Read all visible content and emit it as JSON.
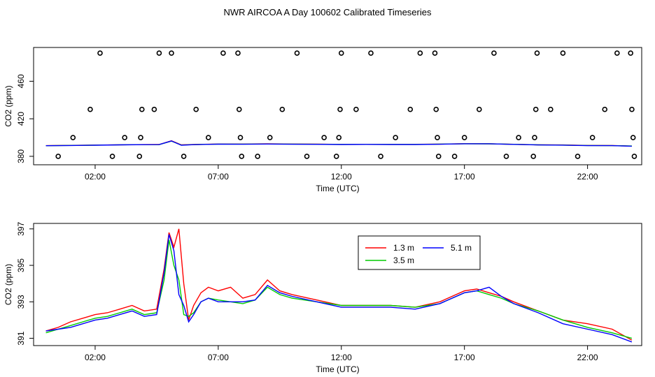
{
  "title": "NWR AIRCOA A  Day 100602  Calibrated Timeseries",
  "chart_data": [
    {
      "type": "line",
      "panel": "top",
      "xlabel": "Time (UTC)",
      "ylabel": "CO2 (ppm)",
      "xlim": [
        -0.5,
        24.2
      ],
      "ylim": [
        371,
        496
      ],
      "xticks": [
        2,
        7,
        12,
        17,
        22
      ],
      "xtick_labels": [
        "02:00",
        "07:00",
        "12:00",
        "17:00",
        "22:00"
      ],
      "yticks": [
        380,
        420,
        460
      ],
      "ytick_labels": [
        "380",
        "420",
        "460"
      ],
      "grid": false,
      "series": [
        {
          "name": "1.3 m",
          "color": "#ff0000",
          "x": [
            0,
            1,
            2,
            3,
            4,
            4.6,
            5.1,
            5.5,
            6,
            7,
            8,
            9,
            10,
            11,
            12,
            13,
            14,
            15,
            16,
            17,
            18,
            19,
            20,
            21,
            22,
            23,
            23.8
          ],
          "y": [
            391.4,
            391.7,
            392.0,
            392.3,
            392.5,
            392.6,
            396.6,
            392.2,
            392.6,
            393.1,
            393.1,
            393.3,
            393.1,
            393.0,
            392.7,
            392.7,
            392.7,
            392.8,
            393.0,
            393.5,
            393.4,
            392.8,
            392.2,
            392.1,
            391.6,
            391.5,
            390.9
          ]
        },
        {
          "name": "3.5 m",
          "color": "#00cc00",
          "x": [
            0,
            1,
            2,
            3,
            4,
            4.6,
            5.1,
            5.5,
            6,
            7,
            8,
            9,
            10,
            11,
            12,
            13,
            14,
            15,
            16,
            17,
            18,
            19,
            20,
            21,
            22,
            23,
            23.8
          ],
          "y": [
            391.3,
            391.6,
            391.9,
            392.3,
            392.4,
            392.4,
            396.2,
            392.0,
            392.5,
            393.0,
            393.0,
            393.1,
            393.0,
            392.9,
            392.7,
            392.7,
            392.7,
            392.7,
            393.0,
            393.4,
            393.3,
            392.8,
            392.2,
            392.0,
            391.5,
            391.4,
            391.0
          ]
        },
        {
          "name": "5.1 m",
          "color": "#0000ff",
          "x": [
            0,
            1,
            2,
            3,
            4,
            4.6,
            5.1,
            5.5,
            6,
            7,
            8,
            9,
            10,
            11,
            12,
            13,
            14,
            15,
            16,
            17,
            18,
            19,
            20,
            21,
            22,
            23,
            23.8
          ],
          "y": [
            391.3,
            391.5,
            391.8,
            392.2,
            392.4,
            392.5,
            396.4,
            391.8,
            392.4,
            393.0,
            392.9,
            393.1,
            392.9,
            392.8,
            392.6,
            392.7,
            392.6,
            392.6,
            392.9,
            393.4,
            393.4,
            392.7,
            392.1,
            391.9,
            391.4,
            391.4,
            390.8
          ]
        }
      ],
      "points": {
        "name": "calibration",
        "marker": "open-circle",
        "x": [
          0.5,
          1.1,
          1.8,
          2.2,
          2.7,
          3.2,
          3.8,
          3.85,
          3.9,
          4.6,
          4.4,
          5.1,
          5.6,
          6.1,
          6.6,
          7.2,
          7.8,
          7.85,
          7.9,
          7.95,
          8.6,
          9.1,
          9.6,
          10.2,
          10.6,
          11.3,
          11.8,
          11.9,
          11.95,
          12.0,
          12.6,
          13.2,
          13.6,
          14.2,
          14.8,
          15.2,
          15.8,
          15.85,
          15.9,
          15.95,
          16.6,
          17.0,
          17.6,
          18.2,
          18.7,
          19.2,
          19.8,
          19.85,
          19.9,
          19.95,
          20.5,
          21.0,
          21.6,
          22.2,
          22.7,
          23.2,
          23.75,
          23.8,
          23.85,
          23.9
        ],
        "y": [
          380,
          400,
          430,
          490,
          380,
          400,
          380,
          400,
          430,
          490,
          430,
          490,
          380,
          430,
          400,
          490,
          490,
          430,
          400,
          380,
          380,
          400,
          430,
          490,
          380,
          400,
          380,
          400,
          430,
          490,
          430,
          490,
          380,
          400,
          430,
          490,
          490,
          430,
          400,
          380,
          380,
          400,
          430,
          490,
          380,
          400,
          380,
          400,
          430,
          490,
          430,
          490,
          380,
          400,
          430,
          490,
          490,
          430,
          400,
          380
        ]
      }
    },
    {
      "type": "line",
      "panel": "bottom",
      "xlabel": "Time (UTC)",
      "ylabel": "CO2 (ppm)",
      "xlim": [
        -0.5,
        24.2
      ],
      "ylim": [
        390.6,
        397.3
      ],
      "xticks": [
        2,
        7,
        12,
        17,
        22
      ],
      "xtick_labels": [
        "02:00",
        "07:00",
        "12:00",
        "17:00",
        "22:00"
      ],
      "yticks": [
        391,
        393,
        395,
        397
      ],
      "ytick_labels": [
        "391",
        "393",
        "395",
        "397"
      ],
      "grid": false,
      "legend": {
        "position": "top-center",
        "entries": [
          "1.3 m",
          "5.1 m",
          "3.5 m"
        ]
      },
      "series": [
        {
          "name": "1.3 m",
          "color": "#ff0000",
          "x": [
            0,
            0.5,
            1,
            1.5,
            2,
            2.5,
            3,
            3.5,
            4,
            4.5,
            4.8,
            5.0,
            5.2,
            5.4,
            5.6,
            5.8,
            6.0,
            6.3,
            6.6,
            7.0,
            7.5,
            8.0,
            8.5,
            9.0,
            9.5,
            10,
            11,
            12,
            13,
            14,
            15,
            16,
            17,
            17.5,
            18,
            18.5,
            19,
            20,
            21,
            22,
            23,
            23.8
          ],
          "y": [
            391.4,
            391.6,
            391.9,
            392.1,
            392.3,
            392.4,
            392.6,
            392.8,
            392.5,
            392.6,
            394.8,
            396.8,
            396.0,
            397.0,
            394.0,
            392.0,
            392.8,
            393.5,
            393.8,
            393.6,
            393.8,
            393.2,
            393.4,
            394.2,
            393.6,
            393.4,
            393.1,
            392.8,
            392.8,
            392.8,
            392.7,
            393.0,
            393.6,
            393.7,
            393.5,
            393.3,
            393.0,
            392.5,
            392.0,
            391.8,
            391.5,
            390.9
          ]
        },
        {
          "name": "3.5 m",
          "color": "#00cc00",
          "x": [
            0,
            0.5,
            1,
            1.5,
            2,
            2.5,
            3,
            3.5,
            4,
            4.5,
            4.8,
            5.0,
            5.2,
            5.4,
            5.6,
            5.8,
            6.0,
            6.3,
            6.6,
            7.0,
            7.5,
            8.0,
            8.5,
            9.0,
            9.5,
            10,
            11,
            12,
            13,
            14,
            15,
            16,
            17,
            17.5,
            18,
            18.5,
            19,
            20,
            21,
            22,
            23,
            23.8
          ],
          "y": [
            391.3,
            391.5,
            391.7,
            391.9,
            392.1,
            392.2,
            392.4,
            392.6,
            392.3,
            392.4,
            394.2,
            396.4,
            395.0,
            394.2,
            392.3,
            392.2,
            392.4,
            393.0,
            393.2,
            393.1,
            393.0,
            392.9,
            393.1,
            393.8,
            393.4,
            393.2,
            393.0,
            392.8,
            392.8,
            392.8,
            392.7,
            392.9,
            393.5,
            393.6,
            393.4,
            393.2,
            392.9,
            392.5,
            392.0,
            391.6,
            391.3,
            391.0
          ]
        },
        {
          "name": "5.1 m",
          "color": "#0000ff",
          "x": [
            0,
            0.5,
            1,
            1.5,
            2,
            2.5,
            3,
            3.5,
            4,
            4.5,
            4.8,
            5.0,
            5.2,
            5.4,
            5.6,
            5.8,
            6.0,
            6.3,
            6.6,
            7.0,
            7.5,
            8.0,
            8.5,
            9.0,
            9.5,
            10,
            11,
            12,
            13,
            14,
            15,
            16,
            17,
            17.5,
            18,
            18.5,
            19,
            20,
            21,
            22,
            23,
            23.8
          ],
          "y": [
            391.4,
            391.5,
            391.6,
            391.8,
            392.0,
            392.1,
            392.3,
            392.5,
            392.2,
            392.3,
            394.6,
            396.7,
            395.8,
            393.4,
            392.8,
            391.9,
            392.3,
            393.0,
            393.2,
            393.0,
            393.0,
            393.0,
            393.1,
            393.9,
            393.5,
            393.3,
            393.0,
            392.7,
            392.7,
            392.7,
            392.6,
            392.9,
            393.5,
            393.6,
            393.8,
            393.3,
            392.9,
            392.4,
            391.8,
            391.5,
            391.2,
            390.8
          ]
        }
      ]
    }
  ]
}
